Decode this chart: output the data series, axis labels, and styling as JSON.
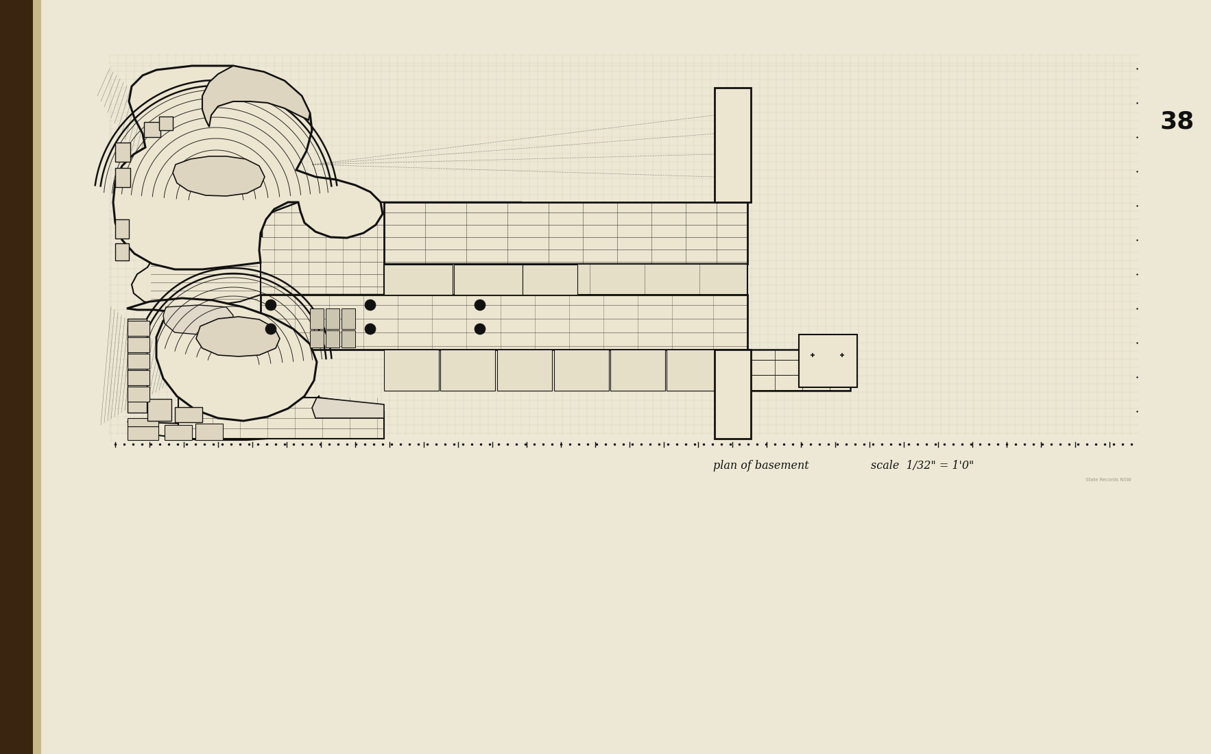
{
  "bg_color": "#e8dfc8",
  "paper_color": "#ede8d8",
  "spine_color": "#2a1a0a",
  "line_color": "#111111",
  "grid_color": "#b8aa88",
  "page_number": "38",
  "caption_text": "plan of basement",
  "scale_text": "scale  1/32\" = 1'0\"",
  "fig_width": 17.66,
  "fig_height": 11.0,
  "dpi": 100
}
